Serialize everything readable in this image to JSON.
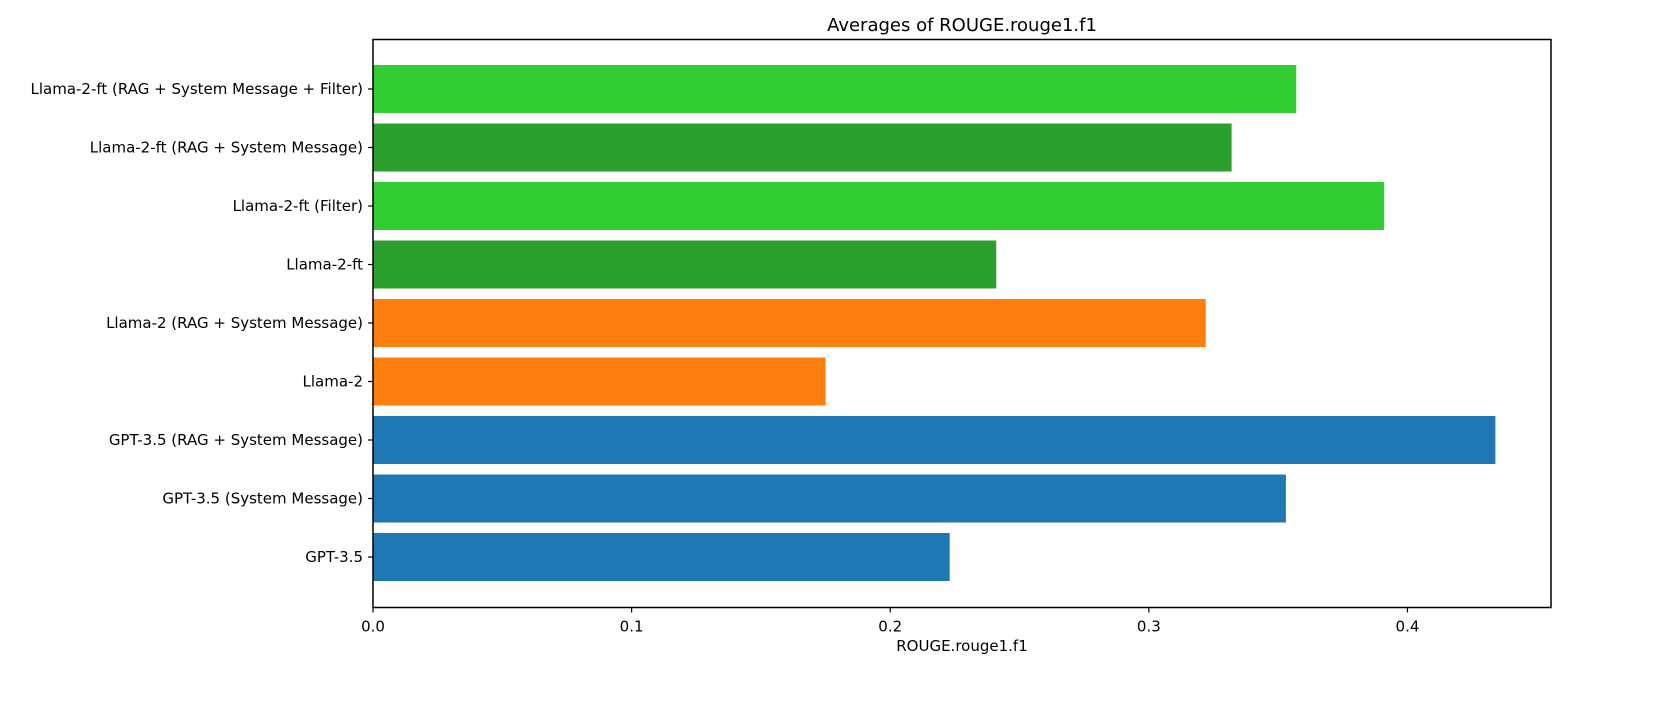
{
  "chart_data": {
    "type": "bar",
    "orientation": "horizontal",
    "title": "Averages of ROUGE.rouge1.f1",
    "xlabel": "ROUGE.rouge1.f1",
    "ylabel": "",
    "xlim": [
      0,
      0.4555
    ],
    "xticks": [
      "0.0",
      "0.1",
      "0.2",
      "0.3",
      "0.4"
    ],
    "categories": [
      "Llama-2-ft (RAG + System Message + Filter)",
      "Llama-2-ft (RAG + System Message)",
      "Llama-2-ft (Filter)",
      "Llama-2-ft",
      "Llama-2 (RAG + System Message)",
      "Llama-2",
      "GPT-3.5 (RAG + System Message)",
      "GPT-3.5 (System Message)",
      "GPT-3.5"
    ],
    "values": [
      0.357,
      0.332,
      0.391,
      0.241,
      0.322,
      0.175,
      0.434,
      0.353,
      0.223
    ],
    "colors": [
      "#32cd32",
      "#2ca02c",
      "#32cd32",
      "#2ca02c",
      "#ff7f0e",
      "#ff7f0e",
      "#1f77b4",
      "#1f77b4",
      "#1f77b4"
    ],
    "grid": false,
    "legend": "none"
  }
}
